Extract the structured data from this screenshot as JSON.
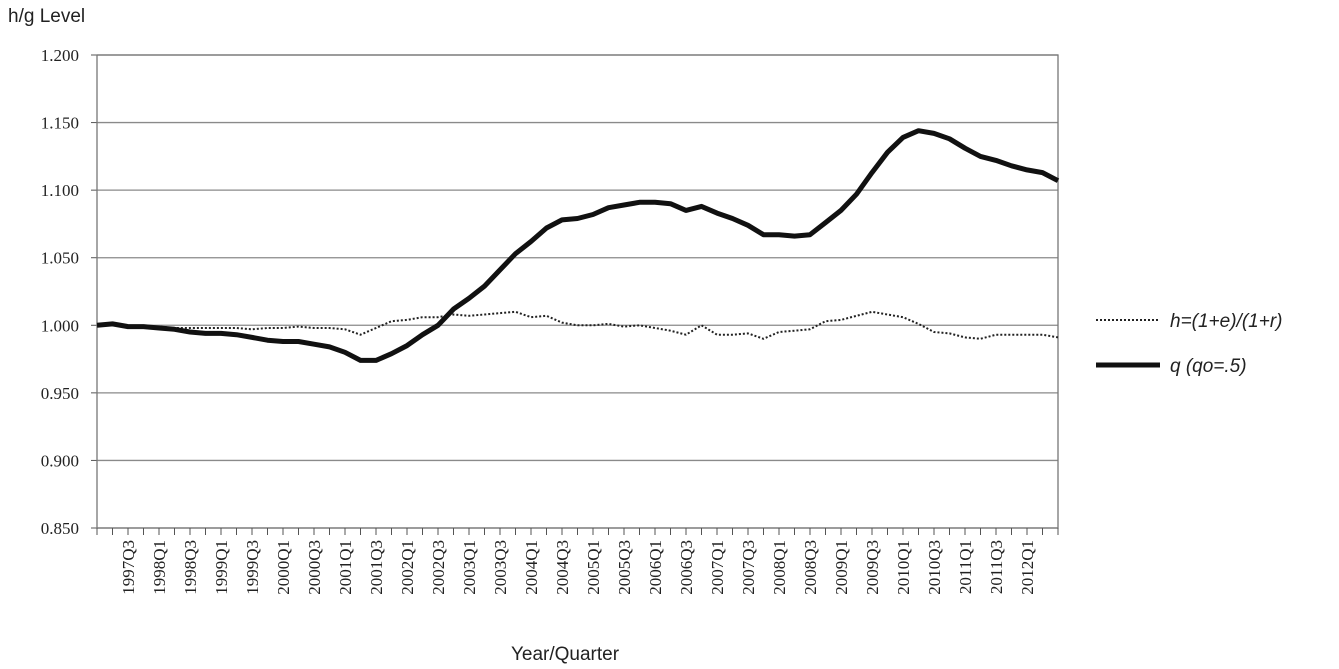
{
  "chart_data": {
    "type": "line",
    "y_label": "h/g Level",
    "x_label": "Year/Quarter",
    "categories": [
      null,
      null,
      "1997Q3",
      null,
      "1998Q1",
      null,
      "1998Q3",
      null,
      "1999Q1",
      null,
      "1999Q3",
      null,
      "2000Q1",
      null,
      "2000Q3",
      null,
      "2001Q1",
      null,
      "2001Q3",
      null,
      "2002Q1",
      null,
      "2002Q3",
      null,
      "2003Q1",
      null,
      "2003Q3",
      null,
      "2004Q1",
      null,
      "2004Q3",
      null,
      "2005Q1",
      null,
      "2005Q3",
      null,
      "2006Q1",
      null,
      "2006Q3",
      null,
      "2007Q1",
      null,
      "2007Q3",
      null,
      "2008Q1",
      null,
      "2008Q3",
      null,
      "2009Q1",
      null,
      "2009Q3",
      null,
      "2010Q1",
      null,
      "2010Q3",
      null,
      "2011Q1",
      null,
      "2011Q3",
      null,
      "2012Q1",
      null,
      null
    ],
    "series": [
      {
        "name": "h=(1+e)/(1+r)",
        "color": "#222222",
        "dash": "dotted",
        "values": [
          1.0,
          1.0,
          0.999,
          0.999,
          0.999,
          0.998,
          0.998,
          0.998,
          0.998,
          0.998,
          0.997,
          0.998,
          0.998,
          0.999,
          0.998,
          0.998,
          0.997,
          0.993,
          0.998,
          1.003,
          1.004,
          1.006,
          1.006,
          1.008,
          1.007,
          1.008,
          1.009,
          1.01,
          1.006,
          1.007,
          1.002,
          1.0,
          1.0,
          1.001,
          0.999,
          1.0,
          0.998,
          0.996,
          0.993,
          1.0,
          0.993,
          0.993,
          0.994,
          0.99,
          0.995,
          0.996,
          0.997,
          1.003,
          1.004,
          1.007,
          1.01,
          1.008,
          1.006,
          1.001,
          0.995,
          0.994,
          0.991,
          0.99,
          0.993,
          0.993,
          0.993,
          0.993,
          0.991
        ]
      },
      {
        "name": "q (qo=.5)",
        "color": "#111111",
        "dash": "solid",
        "values": [
          1.0,
          1.001,
          0.999,
          0.999,
          0.998,
          0.997,
          0.995,
          0.994,
          0.994,
          0.993,
          0.991,
          0.989,
          0.988,
          0.988,
          0.986,
          0.984,
          0.98,
          0.974,
          0.974,
          0.979,
          0.985,
          0.993,
          1.0,
          1.012,
          1.02,
          1.029,
          1.041,
          1.053,
          1.062,
          1.072,
          1.078,
          1.079,
          1.082,
          1.087,
          1.089,
          1.091,
          1.091,
          1.09,
          1.085,
          1.088,
          1.083,
          1.079,
          1.074,
          1.067,
          1.067,
          1.066,
          1.067,
          1.076,
          1.085,
          1.097,
          1.113,
          1.128,
          1.139,
          1.144,
          1.142,
          1.138,
          1.131,
          1.125,
          1.122,
          1.118,
          1.115,
          1.113,
          1.107
        ]
      }
    ],
    "ylim": [
      0.85,
      1.2
    ],
    "yticks": [
      {
        "value": 0.85,
        "label": "0.850"
      },
      {
        "value": 0.9,
        "label": "0.900"
      },
      {
        "value": 0.95,
        "label": "0.950"
      },
      {
        "value": 1.0,
        "label": "1.000"
      },
      {
        "value": 1.05,
        "label": "1.050"
      },
      {
        "value": 1.1,
        "label": "1.100"
      },
      {
        "value": 1.15,
        "label": "1.150"
      },
      {
        "value": 1.2,
        "label": "1.200"
      }
    ],
    "grid": true,
    "legend": "right"
  }
}
